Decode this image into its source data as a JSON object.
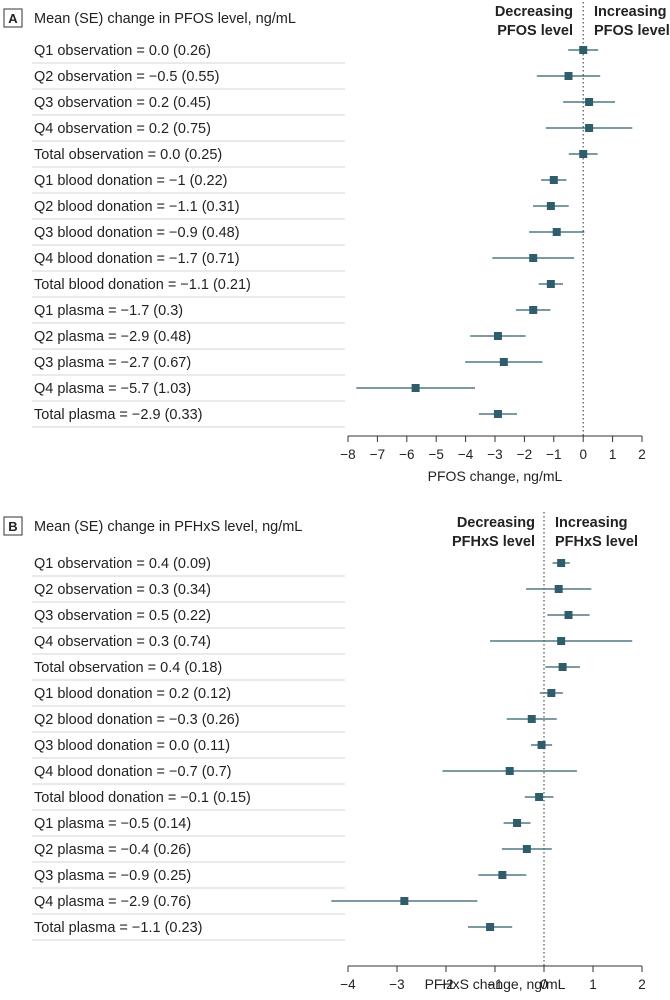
{
  "colors": {
    "marker": "#2f5d6b",
    "text": "#222222",
    "rule": "#c9c9c9"
  },
  "chart_data": [
    {
      "type": "forest",
      "panel": "A",
      "title": "Mean (SE) change in PFOS level, ng/mL",
      "left_direction_label": [
        "Decreasing",
        "PFOS level"
      ],
      "right_direction_label": [
        "Increasing",
        "PFOS level"
      ],
      "xlabel": "PFOS change, ng/mL",
      "xlim": [
        -8,
        2
      ],
      "xticks": [
        -8,
        -7,
        -6,
        -5,
        -4,
        -3,
        -2,
        -1,
        0,
        1,
        2
      ],
      "reference_line": 0,
      "rows": [
        {
          "label": "Q1 observation = 0.0 (0.26)",
          "mean": 0.0,
          "se": 0.26
        },
        {
          "label": "Q2 observation = −0.5 (0.55)",
          "mean": -0.5,
          "se": 0.55
        },
        {
          "label": "Q3 observation = 0.2 (0.45)",
          "mean": 0.2,
          "se": 0.45
        },
        {
          "label": "Q4 observation = 0.2 (0.75)",
          "mean": 0.2,
          "se": 0.75
        },
        {
          "label": "Total observation = 0.0 (0.25)",
          "mean": 0.0,
          "se": 0.25
        },
        {
          "label": "Q1 blood donation = −1 (0.22)",
          "mean": -1.0,
          "se": 0.22
        },
        {
          "label": "Q2 blood donation = −1.1 (0.31)",
          "mean": -1.1,
          "se": 0.31
        },
        {
          "label": "Q3 blood donation = −0.9 (0.48)",
          "mean": -0.9,
          "se": 0.48
        },
        {
          "label": "Q4 blood donation = −1.7 (0.71)",
          "mean": -1.7,
          "se": 0.71
        },
        {
          "label": "Total blood donation = −1.1 (0.21)",
          "mean": -1.1,
          "se": 0.21
        },
        {
          "label": "Q1 plasma = −1.7 (0.3)",
          "mean": -1.7,
          "se": 0.3
        },
        {
          "label": "Q2 plasma = −2.9 (0.48)",
          "mean": -2.9,
          "se": 0.48
        },
        {
          "label": "Q3 plasma = −2.7 (0.67)",
          "mean": -2.7,
          "se": 0.67
        },
        {
          "label": "Q4 plasma = −5.7 (1.03)",
          "mean": -5.7,
          "se": 1.03
        },
        {
          "label": "Total plasma = −2.9 (0.33)",
          "mean": -2.9,
          "se": 0.33
        }
      ]
    },
    {
      "type": "forest",
      "panel": "B",
      "title": "Mean (SE) change in PFHxS level, ng/mL",
      "left_direction_label": [
        "Decreasing",
        "PFHxS level"
      ],
      "right_direction_label": [
        "Increasing",
        "PFHxS level"
      ],
      "xlabel": "PFHxS change, ng/mL",
      "xlim": [
        -4,
        2
      ],
      "xticks": [
        -4,
        -3,
        -2,
        -1,
        0,
        1,
        2
      ],
      "reference_line": 0,
      "rows": [
        {
          "label": "Q1 observation = 0.4 (0.09)",
          "mean": 0.35,
          "se": 0.09
        },
        {
          "label": "Q2 observation = 0.3 (0.34)",
          "mean": 0.3,
          "se": 0.34
        },
        {
          "label": "Q3 observation = 0.5 (0.22)",
          "mean": 0.5,
          "se": 0.22
        },
        {
          "label": "Q4 observation = 0.3 (0.74)",
          "mean": 0.35,
          "se": 0.74
        },
        {
          "label": "Total observation = 0.4 (0.18)",
          "mean": 0.38,
          "se": 0.18
        },
        {
          "label": "Q1 blood donation = 0.2 (0.12)",
          "mean": 0.15,
          "se": 0.12
        },
        {
          "label": "Q2 blood donation = −0.3 (0.26)",
          "mean": -0.25,
          "se": 0.26
        },
        {
          "label": "Q3 blood donation = 0.0 (0.11)",
          "mean": -0.05,
          "se": 0.11
        },
        {
          "label": "Q4 blood donation = −0.7 (0.7)",
          "mean": -0.7,
          "se": 0.7
        },
        {
          "label": "Total blood donation = −0.1 (0.15)",
          "mean": -0.1,
          "se": 0.15
        },
        {
          "label": "Q1 plasma = −0.5 (0.14)",
          "mean": -0.55,
          "se": 0.14
        },
        {
          "label": "Q2 plasma = −0.4 (0.26)",
          "mean": -0.35,
          "se": 0.26
        },
        {
          "label": "Q3 plasma = −0.9 (0.25)",
          "mean": -0.85,
          "se": 0.25
        },
        {
          "label": "Q4 plasma = −2.9 (0.76)",
          "mean": -2.85,
          "se": 0.76
        },
        {
          "label": "Total plasma = −1.1 (0.23)",
          "mean": -1.1,
          "se": 0.23
        }
      ]
    }
  ]
}
